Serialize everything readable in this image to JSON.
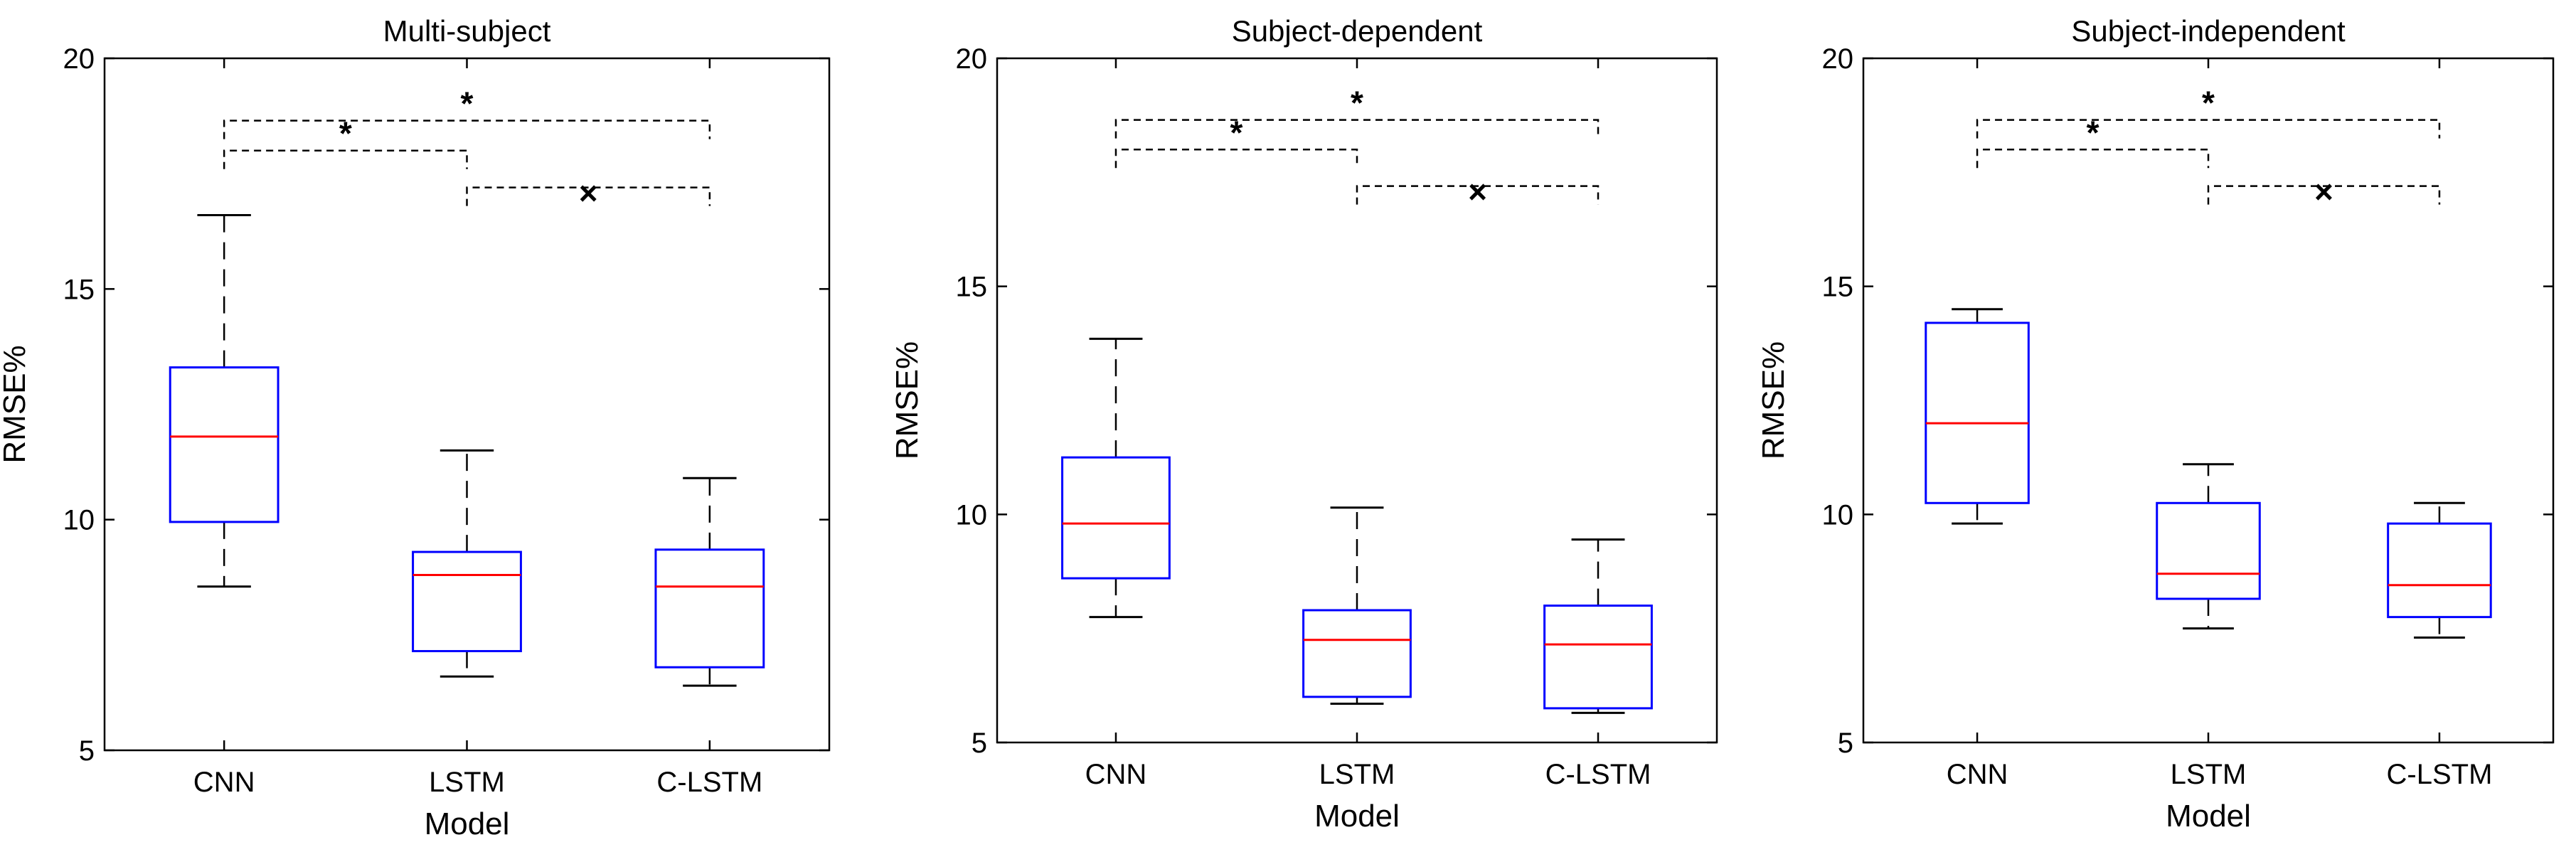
{
  "chart_data": [
    {
      "type": "boxplot",
      "title": "Multi-subject",
      "xlabel": "Model",
      "ylabel": "RMSE%",
      "ylim": [
        5,
        20
      ],
      "yticks": [
        "5",
        "10",
        "15",
        "20"
      ],
      "categories": [
        "CNN",
        "LSTM",
        "C-LSTM"
      ],
      "boxes": [
        {
          "name": "CNN",
          "whisker_low": 8.55,
          "q1": 9.95,
          "median": 11.8,
          "q3": 13.3,
          "whisker_high": 16.6
        },
        {
          "name": "LSTM",
          "whisker_low": 6.6,
          "q1": 7.15,
          "median": 8.8,
          "q3": 9.3,
          "whisker_high": 11.5
        },
        {
          "name": "C-LSTM",
          "whisker_low": 6.4,
          "q1": 6.8,
          "median": 8.55,
          "q3": 9.35,
          "whisker_high": 10.9
        }
      ],
      "significance": [
        {
          "from": "CNN",
          "to": "LSTM",
          "level": 18.0,
          "label": "*"
        },
        {
          "from": "CNN",
          "to": "C-LSTM",
          "level": 18.65,
          "label": "*"
        },
        {
          "from": "LSTM",
          "to": "C-LSTM",
          "level": 17.2,
          "label": "×"
        }
      ]
    },
    {
      "type": "boxplot",
      "title": "Subject-dependent",
      "xlabel": "Model",
      "ylabel": "RMSE%",
      "ylim": [
        5,
        20
      ],
      "yticks": [
        "5",
        "10",
        "15",
        "20"
      ],
      "categories": [
        "CNN",
        "LSTM",
        "C-LSTM"
      ],
      "boxes": [
        {
          "name": "CNN",
          "whisker_low": 7.75,
          "q1": 8.6,
          "median": 9.8,
          "q3": 11.25,
          "whisker_high": 13.85
        },
        {
          "name": "LSTM",
          "whisker_low": 5.85,
          "q1": 6.0,
          "median": 7.25,
          "q3": 7.9,
          "whisker_high": 10.15
        },
        {
          "name": "C-LSTM",
          "whisker_low": 5.65,
          "q1": 5.75,
          "median": 7.15,
          "q3": 8.0,
          "whisker_high": 9.45
        }
      ],
      "significance": [
        {
          "from": "CNN",
          "to": "LSTM",
          "level": 18.0,
          "label": "*"
        },
        {
          "from": "CNN",
          "to": "C-LSTM",
          "level": 18.65,
          "label": "*"
        },
        {
          "from": "LSTM",
          "to": "C-LSTM",
          "level": 17.2,
          "label": "×"
        }
      ]
    },
    {
      "type": "boxplot",
      "title": "Subject-independent",
      "xlabel": "Model",
      "ylabel": "RMSE%",
      "ylim": [
        5,
        20
      ],
      "yticks": [
        "5",
        "10",
        "15",
        "20"
      ],
      "categories": [
        "CNN",
        "LSTM",
        "C-LSTM"
      ],
      "boxes": [
        {
          "name": "CNN",
          "whisker_low": 9.8,
          "q1": 10.25,
          "median": 12.0,
          "q3": 14.2,
          "whisker_high": 14.5
        },
        {
          "name": "LSTM",
          "whisker_low": 7.5,
          "q1": 8.15,
          "median": 8.7,
          "q3": 10.25,
          "whisker_high": 11.1
        },
        {
          "name": "C-LSTM",
          "whisker_low": 7.3,
          "q1": 7.75,
          "median": 8.45,
          "q3": 9.8,
          "whisker_high": 10.25
        }
      ],
      "significance": [
        {
          "from": "CNN",
          "to": "LSTM",
          "level": 18.0,
          "label": "*"
        },
        {
          "from": "CNN",
          "to": "C-LSTM",
          "level": 18.65,
          "label": "*"
        },
        {
          "from": "LSTM",
          "to": "C-LSTM",
          "level": 17.2,
          "label": "×"
        }
      ]
    }
  ],
  "colors": {
    "box": "#0000ff",
    "median": "#ff0000",
    "whisker": "#000000",
    "bracket": "#000000"
  }
}
